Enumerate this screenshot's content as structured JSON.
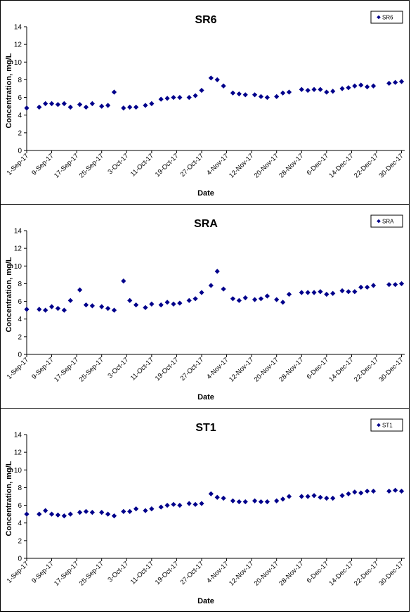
{
  "chart_data": [
    {
      "type": "scatter",
      "title": "SR6",
      "xlabel": "Date",
      "ylabel": "Concentration, mg/L",
      "ylim": [
        0,
        14
      ],
      "yticks": [
        0,
        2,
        4,
        6,
        8,
        10,
        12,
        14
      ],
      "xlim": [
        "2017-09-01",
        "2017-12-31"
      ],
      "xtick_labels": [
        "1-Sep-17",
        "9-Sep-17",
        "17-Sep-17",
        "25-Sep-17",
        "3-Oct-17",
        "11-Oct-17",
        "19-Oct-17",
        "27-Oct-17",
        "4-Nov-17",
        "12-Nov-17",
        "20-Nov-17",
        "28-Nov-17",
        "6-Dec-17",
        "14-Dec-17",
        "22-Dec-17",
        "30-Dec-17"
      ],
      "legend": "top-right",
      "marker_color": "#00008B",
      "series": [
        {
          "name": "SR6",
          "points": [
            [
              "2017-09-01",
              4.8
            ],
            [
              "2017-09-05",
              4.9
            ],
            [
              "2017-09-07",
              5.3
            ],
            [
              "2017-09-09",
              5.3
            ],
            [
              "2017-09-11",
              5.2
            ],
            [
              "2017-09-13",
              5.3
            ],
            [
              "2017-09-15",
              4.9
            ],
            [
              "2017-09-18",
              5.2
            ],
            [
              "2017-09-20",
              4.9
            ],
            [
              "2017-09-22",
              5.3
            ],
            [
              "2017-09-25",
              5.0
            ],
            [
              "2017-09-27",
              5.1
            ],
            [
              "2017-09-29",
              6.6
            ],
            [
              "2017-10-02",
              4.8
            ],
            [
              "2017-10-04",
              4.9
            ],
            [
              "2017-10-06",
              4.9
            ],
            [
              "2017-10-09",
              5.1
            ],
            [
              "2017-10-11",
              5.3
            ],
            [
              "2017-10-14",
              5.8
            ],
            [
              "2017-10-16",
              5.9
            ],
            [
              "2017-10-18",
              6.0
            ],
            [
              "2017-10-20",
              6.0
            ],
            [
              "2017-10-23",
              6.0
            ],
            [
              "2017-10-25",
              6.2
            ],
            [
              "2017-10-27",
              6.8
            ],
            [
              "2017-10-30",
              8.2
            ],
            [
              "2017-11-01",
              8.0
            ],
            [
              "2017-11-03",
              7.3
            ],
            [
              "2017-11-06",
              6.5
            ],
            [
              "2017-11-08",
              6.4
            ],
            [
              "2017-11-10",
              6.3
            ],
            [
              "2017-11-13",
              6.3
            ],
            [
              "2017-11-15",
              6.1
            ],
            [
              "2017-11-17",
              6.0
            ],
            [
              "2017-11-20",
              6.1
            ],
            [
              "2017-11-22",
              6.5
            ],
            [
              "2017-11-24",
              6.6
            ],
            [
              "2017-11-28",
              6.9
            ],
            [
              "2017-11-30",
              6.8
            ],
            [
              "2017-12-02",
              6.9
            ],
            [
              "2017-12-04",
              6.9
            ],
            [
              "2017-12-06",
              6.6
            ],
            [
              "2017-12-08",
              6.7
            ],
            [
              "2017-12-11",
              7.0
            ],
            [
              "2017-12-13",
              7.1
            ],
            [
              "2017-12-15",
              7.3
            ],
            [
              "2017-12-17",
              7.4
            ],
            [
              "2017-12-19",
              7.2
            ],
            [
              "2017-12-21",
              7.3
            ],
            [
              "2017-12-26",
              7.6
            ],
            [
              "2017-12-28",
              7.7
            ],
            [
              "2017-12-30",
              7.8
            ]
          ]
        }
      ]
    },
    {
      "type": "scatter",
      "title": "SRA",
      "xlabel": "Date",
      "ylabel": "Concentration, mg/L",
      "ylim": [
        0,
        14
      ],
      "yticks": [
        0,
        2,
        4,
        6,
        8,
        10,
        12,
        14
      ],
      "xlim": [
        "2017-09-01",
        "2017-12-31"
      ],
      "xtick_labels": [
        "1-Sep-17",
        "9-Sep-17",
        "17-Sep-17",
        "25-Sep-17",
        "3-Oct-17",
        "11-Oct-17",
        "19-Oct-17",
        "27-Oct-17",
        "4-Nov-17",
        "12-Nov-17",
        "20-Nov-17",
        "28-Nov-17",
        "6-Dec-17",
        "14-Dec-17",
        "22-Dec-17",
        "30-Dec-17"
      ],
      "legend": "top-right",
      "marker_color": "#00008B",
      "series": [
        {
          "name": "SRA",
          "points": [
            [
              "2017-09-01",
              5.1
            ],
            [
              "2017-09-05",
              5.1
            ],
            [
              "2017-09-07",
              5.0
            ],
            [
              "2017-09-09",
              5.4
            ],
            [
              "2017-09-11",
              5.2
            ],
            [
              "2017-09-13",
              5.0
            ],
            [
              "2017-09-15",
              6.1
            ],
            [
              "2017-09-18",
              7.3
            ],
            [
              "2017-09-20",
              5.6
            ],
            [
              "2017-09-22",
              5.5
            ],
            [
              "2017-09-25",
              5.4
            ],
            [
              "2017-09-27",
              5.2
            ],
            [
              "2017-09-29",
              5.0
            ],
            [
              "2017-10-02",
              8.3
            ],
            [
              "2017-10-04",
              6.1
            ],
            [
              "2017-10-06",
              5.6
            ],
            [
              "2017-10-09",
              5.3
            ],
            [
              "2017-10-11",
              5.7
            ],
            [
              "2017-10-14",
              5.6
            ],
            [
              "2017-10-16",
              5.9
            ],
            [
              "2017-10-18",
              5.7
            ],
            [
              "2017-10-20",
              5.8
            ],
            [
              "2017-10-23",
              6.1
            ],
            [
              "2017-10-25",
              6.3
            ],
            [
              "2017-10-27",
              7.0
            ],
            [
              "2017-10-30",
              7.8
            ],
            [
              "2017-11-01",
              9.4
            ],
            [
              "2017-11-03",
              7.4
            ],
            [
              "2017-11-06",
              6.3
            ],
            [
              "2017-11-08",
              6.1
            ],
            [
              "2017-11-10",
              6.4
            ],
            [
              "2017-11-13",
              6.2
            ],
            [
              "2017-11-15",
              6.3
            ],
            [
              "2017-11-17",
              6.6
            ],
            [
              "2017-11-20",
              6.2
            ],
            [
              "2017-11-22",
              5.9
            ],
            [
              "2017-11-24",
              6.8
            ],
            [
              "2017-11-28",
              7.0
            ],
            [
              "2017-11-30",
              7.0
            ],
            [
              "2017-12-02",
              7.0
            ],
            [
              "2017-12-04",
              7.1
            ],
            [
              "2017-12-06",
              6.8
            ],
            [
              "2017-12-08",
              6.9
            ],
            [
              "2017-12-11",
              7.2
            ],
            [
              "2017-12-13",
              7.1
            ],
            [
              "2017-12-15",
              7.1
            ],
            [
              "2017-12-17",
              7.6
            ],
            [
              "2017-12-19",
              7.6
            ],
            [
              "2017-12-21",
              7.8
            ],
            [
              "2017-12-26",
              7.9
            ],
            [
              "2017-12-28",
              7.9
            ],
            [
              "2017-12-30",
              8.0
            ]
          ]
        }
      ]
    },
    {
      "type": "scatter",
      "title": "ST1",
      "xlabel": "Date",
      "ylabel": "Concentration, mg/L",
      "ylim": [
        0,
        14
      ],
      "yticks": [
        0,
        2,
        4,
        6,
        8,
        10,
        12,
        14
      ],
      "xlim": [
        "2017-09-01",
        "2017-12-31"
      ],
      "xtick_labels": [
        "1-Sep-17",
        "9-Sep-17",
        "17-Sep-17",
        "25-Sep-17",
        "3-Oct-17",
        "11-Oct-17",
        "19-Oct-17",
        "27-Oct-17",
        "4-Nov-17",
        "12-Nov-17",
        "20-Nov-17",
        "28-Nov-17",
        "6-Dec-17",
        "14-Dec-17",
        "22-Dec-17",
        "30-Dec-17"
      ],
      "legend": "top-right",
      "marker_color": "#00008B",
      "series": [
        {
          "name": "ST1",
          "points": [
            [
              "2017-09-01",
              5.0
            ],
            [
              "2017-09-05",
              5.0
            ],
            [
              "2017-09-07",
              5.4
            ],
            [
              "2017-09-09",
              5.0
            ],
            [
              "2017-09-11",
              4.9
            ],
            [
              "2017-09-13",
              4.8
            ],
            [
              "2017-09-15",
              5.0
            ],
            [
              "2017-09-18",
              5.2
            ],
            [
              "2017-09-20",
              5.3
            ],
            [
              "2017-09-22",
              5.2
            ],
            [
              "2017-09-25",
              5.2
            ],
            [
              "2017-09-27",
              5.0
            ],
            [
              "2017-09-29",
              4.8
            ],
            [
              "2017-10-02",
              5.3
            ],
            [
              "2017-10-04",
              5.3
            ],
            [
              "2017-10-06",
              5.6
            ],
            [
              "2017-10-09",
              5.4
            ],
            [
              "2017-10-11",
              5.6
            ],
            [
              "2017-10-14",
              5.8
            ],
            [
              "2017-10-16",
              6.0
            ],
            [
              "2017-10-18",
              6.1
            ],
            [
              "2017-10-20",
              6.0
            ],
            [
              "2017-10-23",
              6.2
            ],
            [
              "2017-10-25",
              6.1
            ],
            [
              "2017-10-27",
              6.2
            ],
            [
              "2017-10-30",
              7.3
            ],
            [
              "2017-11-01",
              6.9
            ],
            [
              "2017-11-03",
              6.8
            ],
            [
              "2017-11-06",
              6.5
            ],
            [
              "2017-11-08",
              6.4
            ],
            [
              "2017-11-10",
              6.4
            ],
            [
              "2017-11-13",
              6.5
            ],
            [
              "2017-11-15",
              6.4
            ],
            [
              "2017-11-17",
              6.4
            ],
            [
              "2017-11-20",
              6.5
            ],
            [
              "2017-11-22",
              6.7
            ],
            [
              "2017-11-24",
              7.0
            ],
            [
              "2017-11-28",
              7.0
            ],
            [
              "2017-11-30",
              7.0
            ],
            [
              "2017-12-02",
              7.1
            ],
            [
              "2017-12-04",
              6.9
            ],
            [
              "2017-12-06",
              6.8
            ],
            [
              "2017-12-08",
              6.8
            ],
            [
              "2017-12-11",
              7.1
            ],
            [
              "2017-12-13",
              7.3
            ],
            [
              "2017-12-15",
              7.5
            ],
            [
              "2017-12-17",
              7.4
            ],
            [
              "2017-12-19",
              7.6
            ],
            [
              "2017-12-21",
              7.6
            ],
            [
              "2017-12-26",
              7.6
            ],
            [
              "2017-12-28",
              7.7
            ],
            [
              "2017-12-30",
              7.6
            ]
          ]
        }
      ]
    }
  ]
}
